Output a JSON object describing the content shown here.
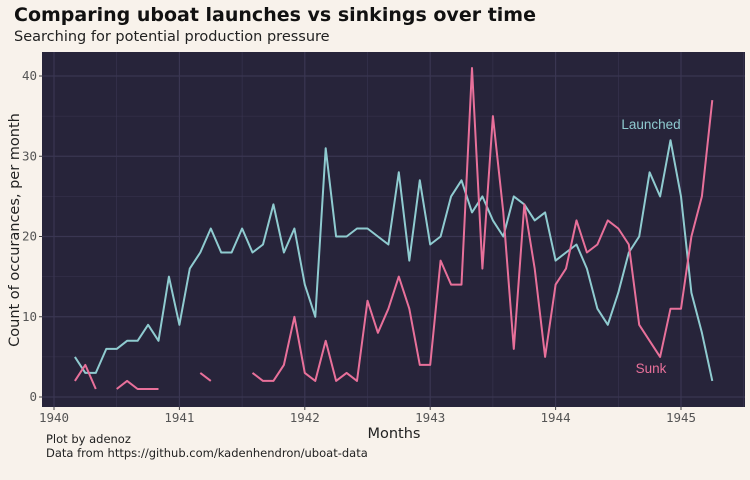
{
  "title": "Comparing uboat launches vs sinkings over time",
  "subtitle": "Searching for potential production pressure",
  "caption": [
    "Plot by adenoz",
    "Data from https://github.com/kadenhendron/uboat-data"
  ],
  "chart_data": {
    "type": "line",
    "xlabel": "Months",
    "ylabel": "Count of occurances, per month",
    "xlim": [
      "1940-01",
      "1945-06"
    ],
    "ylim": [
      0,
      42
    ],
    "x_ticks": [
      "1940",
      "1941",
      "1942",
      "1943",
      "1944",
      "1945"
    ],
    "y_ticks": [
      0,
      10,
      20,
      30,
      40
    ],
    "grid": true,
    "colors": {
      "background": "#F8F2EB",
      "panel": "#27243A",
      "grid": "#3A3652",
      "Launched": "#8FCBD0",
      "Sunk": "#E8709A"
    },
    "start": "1940-03",
    "series": [
      {
        "name": "Launched",
        "values": [
          5,
          3,
          3,
          6,
          6,
          7,
          7,
          9,
          7,
          15,
          9,
          16,
          18,
          21,
          18,
          18,
          21,
          18,
          19,
          24,
          18,
          21,
          14,
          10,
          31,
          20,
          20,
          21,
          21,
          20,
          19,
          28,
          17,
          27,
          19,
          20,
          25,
          27,
          23,
          25,
          22,
          20,
          25,
          24,
          22,
          23,
          17,
          18,
          19,
          16,
          11,
          9,
          13,
          18,
          20,
          28,
          25,
          32,
          25,
          13,
          8,
          2
        ]
      },
      {
        "name": "Sunk",
        "values": [
          2,
          4,
          1,
          null,
          1,
          2,
          1,
          1,
          1,
          null,
          null,
          null,
          3,
          2,
          null,
          null,
          null,
          3,
          2,
          2,
          4,
          10,
          3,
          2,
          7,
          2,
          3,
          2,
          12,
          8,
          11,
          15,
          11,
          4,
          4,
          17,
          14,
          14,
          41,
          16,
          35,
          23,
          6,
          24,
          16,
          5,
          14,
          16,
          22,
          18,
          19,
          22,
          21,
          19,
          9,
          7,
          5,
          11,
          11,
          20,
          25,
          37
        ]
      }
    ]
  }
}
